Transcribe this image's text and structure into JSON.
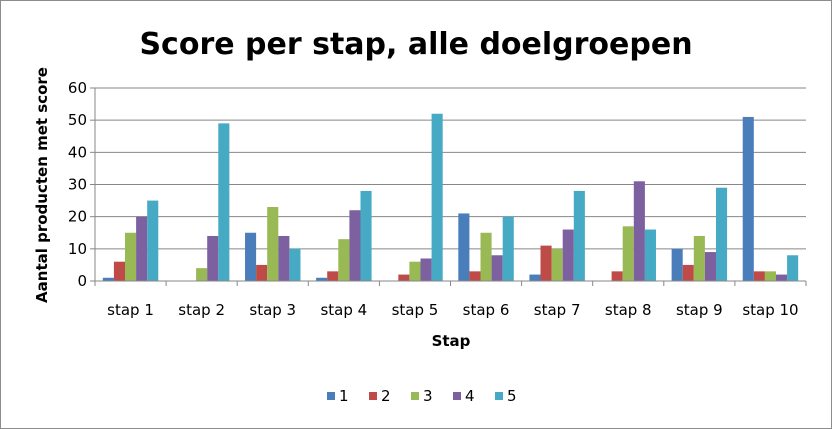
{
  "chart_data": {
    "type": "bar",
    "title": "Score per stap, alle doelgroepen",
    "xlabel": "Stap",
    "ylabel": "Aantal producten met score",
    "ylim": [
      0,
      60
    ],
    "yticks": [
      0,
      10,
      20,
      30,
      40,
      50,
      60
    ],
    "grid": true,
    "legend": "bottom",
    "categories": [
      "stap 1",
      "stap 2",
      "stap 3",
      "stap 4",
      "stap 5",
      "stap 6",
      "stap 7",
      "stap 8",
      "stap 9",
      "stap 10"
    ],
    "series": [
      {
        "name": "1",
        "color": "#4a7ebb",
        "values": [
          1,
          0,
          15,
          1,
          0,
          21,
          2,
          0,
          10,
          51
        ]
      },
      {
        "name": "2",
        "color": "#be4b48",
        "values": [
          6,
          0,
          5,
          3,
          2,
          3,
          11,
          3,
          5,
          3
        ]
      },
      {
        "name": "3",
        "color": "#98b954",
        "values": [
          15,
          4,
          23,
          13,
          6,
          15,
          10,
          17,
          14,
          3
        ]
      },
      {
        "name": "4",
        "color": "#7d60a0",
        "values": [
          20,
          14,
          14,
          22,
          7,
          8,
          16,
          31,
          9,
          2
        ]
      },
      {
        "name": "5",
        "color": "#46aac5",
        "values": [
          25,
          49,
          10,
          28,
          52,
          20,
          28,
          16,
          29,
          8
        ]
      }
    ]
  }
}
